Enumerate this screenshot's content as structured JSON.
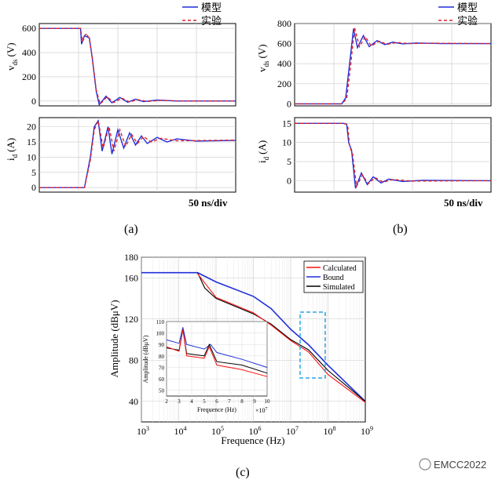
{
  "colors": {
    "model": "#1f2fd9",
    "exp": "#e0202a",
    "calc": "#ff1010",
    "bound": "#1f2fd9",
    "sim": "#000000",
    "box": "#29a8e0"
  },
  "watermark": "EMCC2022",
  "chart_data": [
    {
      "id": "a-vds",
      "type": "line",
      "panel_label": "(a)",
      "ylabel_main": "v",
      "ylabel_sub": "ds",
      "ylabel_unit": "(V)",
      "ylim": [
        -40,
        640
      ],
      "yticks": [
        0,
        200,
        400,
        600
      ],
      "grid": true,
      "legend": [
        "模型",
        "实验"
      ],
      "series": [
        {
          "name": "模型",
          "style": "solid",
          "points": [
            [
              0,
              600
            ],
            [
              0.21,
              600
            ],
            [
              0.215,
              470
            ],
            [
              0.23,
              540
            ],
            [
              0.255,
              520
            ],
            [
              0.27,
              350
            ],
            [
              0.29,
              80
            ],
            [
              0.305,
              -30
            ],
            [
              0.34,
              40
            ],
            [
              0.37,
              -15
            ],
            [
              0.41,
              30
            ],
            [
              0.45,
              -10
            ],
            [
              0.49,
              15
            ],
            [
              0.53,
              -5
            ],
            [
              0.6,
              8
            ],
            [
              0.7,
              0
            ],
            [
              1,
              0
            ]
          ]
        },
        {
          "name": "实验",
          "style": "dashed",
          "points": [
            [
              0,
              600
            ],
            [
              0.21,
              600
            ],
            [
              0.22,
              490
            ],
            [
              0.24,
              560
            ],
            [
              0.255,
              510
            ],
            [
              0.27,
              360
            ],
            [
              0.29,
              90
            ],
            [
              0.31,
              -25
            ],
            [
              0.345,
              35
            ],
            [
              0.38,
              -12
            ],
            [
              0.42,
              25
            ],
            [
              0.46,
              -8
            ],
            [
              0.5,
              12
            ],
            [
              0.55,
              -4
            ],
            [
              0.62,
              6
            ],
            [
              0.72,
              0
            ],
            [
              1,
              0
            ]
          ]
        }
      ]
    },
    {
      "id": "a-id",
      "type": "line",
      "ylabel_main": "i",
      "ylabel_sub": "d",
      "ylabel_unit": "(A)",
      "ylim": [
        -1.5,
        23
      ],
      "yticks": [
        0,
        5,
        10,
        15,
        20
      ],
      "grid": true,
      "time_scale": "50 ns/div",
      "series": [
        {
          "name": "模型",
          "style": "solid",
          "points": [
            [
              0,
              0
            ],
            [
              0.23,
              0
            ],
            [
              0.26,
              10
            ],
            [
              0.28,
              20
            ],
            [
              0.3,
              22
            ],
            [
              0.32,
              12
            ],
            [
              0.35,
              20
            ],
            [
              0.37,
              11
            ],
            [
              0.4,
              19
            ],
            [
              0.43,
              13
            ],
            [
              0.46,
              18
            ],
            [
              0.49,
              14
            ],
            [
              0.52,
              17
            ],
            [
              0.55,
              14.5
            ],
            [
              0.6,
              16.5
            ],
            [
              0.65,
              15
            ],
            [
              0.7,
              16
            ],
            [
              0.8,
              15.3
            ],
            [
              1,
              15.5
            ]
          ]
        },
        {
          "name": "实验",
          "style": "dashed",
          "points": [
            [
              0,
              0
            ],
            [
              0.23,
              0
            ],
            [
              0.26,
              9
            ],
            [
              0.28,
              19
            ],
            [
              0.3,
              22
            ],
            [
              0.325,
              13
            ],
            [
              0.355,
              20
            ],
            [
              0.38,
              12
            ],
            [
              0.41,
              19
            ],
            [
              0.44,
              13.5
            ],
            [
              0.47,
              17.5
            ],
            [
              0.5,
              14.5
            ],
            [
              0.53,
              16.8
            ],
            [
              0.57,
              15
            ],
            [
              0.62,
              16.2
            ],
            [
              0.7,
              15.4
            ],
            [
              1,
              15.6
            ]
          ]
        }
      ]
    },
    {
      "id": "b-vds",
      "type": "line",
      "panel_label": "(b)",
      "ylabel_main": "v",
      "ylabel_sub": "ds",
      "ylabel_unit": "(V)",
      "ylim": [
        -20,
        800
      ],
      "yticks": [
        0,
        200,
        400,
        600,
        800
      ],
      "grid": true,
      "legend": [
        "模型",
        "实验"
      ],
      "series": [
        {
          "name": "模型",
          "style": "solid",
          "points": [
            [
              0,
              0
            ],
            [
              0.24,
              0
            ],
            [
              0.26,
              60
            ],
            [
              0.28,
              400
            ],
            [
              0.3,
              750
            ],
            [
              0.32,
              560
            ],
            [
              0.35,
              680
            ],
            [
              0.38,
              570
            ],
            [
              0.42,
              630
            ],
            [
              0.46,
              590
            ],
            [
              0.5,
              615
            ],
            [
              0.55,
              598
            ],
            [
              0.62,
              606
            ],
            [
              0.75,
              600
            ],
            [
              1,
              600
            ]
          ]
        },
        {
          "name": "实验",
          "style": "dashed",
          "points": [
            [
              0,
              0
            ],
            [
              0.24,
              0
            ],
            [
              0.265,
              50
            ],
            [
              0.285,
              380
            ],
            [
              0.305,
              760
            ],
            [
              0.33,
              570
            ],
            [
              0.36,
              670
            ],
            [
              0.39,
              575
            ],
            [
              0.43,
              625
            ],
            [
              0.47,
              592
            ],
            [
              0.52,
              612
            ],
            [
              0.58,
              600
            ],
            [
              0.7,
              604
            ],
            [
              1,
              600
            ]
          ]
        }
      ]
    },
    {
      "id": "b-id",
      "type": "line",
      "ylabel_main": "i",
      "ylabel_sub": "d",
      "ylabel_unit": "(A)",
      "ylim": [
        -3,
        16.5
      ],
      "yticks": [
        0,
        5,
        10,
        15
      ],
      "grid": true,
      "time_scale": "50 ns/div",
      "series": [
        {
          "name": "模型",
          "style": "solid",
          "points": [
            [
              0,
              15
            ],
            [
              0.25,
              15
            ],
            [
              0.265,
              14.8
            ],
            [
              0.275,
              10
            ],
            [
              0.29,
              8
            ],
            [
              0.31,
              -2
            ],
            [
              0.34,
              2
            ],
            [
              0.37,
              -1
            ],
            [
              0.4,
              1
            ],
            [
              0.44,
              -0.6
            ],
            [
              0.48,
              0.4
            ],
            [
              0.55,
              -0.2
            ],
            [
              0.65,
              0.1
            ],
            [
              1,
              0
            ]
          ]
        },
        {
          "name": "实验",
          "style": "dashed",
          "points": [
            [
              0,
              15
            ],
            [
              0.25,
              15
            ],
            [
              0.27,
              14.6
            ],
            [
              0.28,
              9
            ],
            [
              0.295,
              7
            ],
            [
              0.315,
              -1.5
            ],
            [
              0.345,
              1.5
            ],
            [
              0.375,
              -0.8
            ],
            [
              0.41,
              0.8
            ],
            [
              0.45,
              -0.4
            ],
            [
              0.5,
              0.3
            ],
            [
              0.6,
              -0.1
            ],
            [
              1,
              0
            ]
          ]
        }
      ]
    },
    {
      "id": "c-spectrum",
      "type": "line",
      "panel_label": "(c)",
      "xlabel": "Frequence (Hz)",
      "ylabel": "Amplitude (dBμV)",
      "x_scale": "log",
      "xlim": [
        1000.0,
        1000000000.0
      ],
      "ylim": [
        20,
        180
      ],
      "xtick_labels": [
        "10",
        "10",
        "10",
        "10",
        "10",
        "10",
        "10"
      ],
      "xtick_exps": [
        "3",
        "4",
        "5",
        "6",
        "7",
        "8",
        "9"
      ],
      "yticks": [
        40,
        80,
        120,
        160,
        180
      ],
      "grid": true,
      "legend": [
        "Calculated",
        "Bound",
        "Simulated"
      ],
      "series": [
        {
          "name": "Bound",
          "color": "#1f2fd9",
          "points": [
            [
              1000.0,
              165
            ],
            [
              32000.0,
              165
            ],
            [
              100000.0,
              156
            ],
            [
              1000000.0,
              142
            ],
            [
              3000000.0,
              130
            ],
            [
              10000000.0,
              110
            ],
            [
              30000000.0,
              95
            ],
            [
              100000000.0,
              75
            ],
            [
              1000000000.0,
              40
            ]
          ]
        },
        {
          "name": "Simulated",
          "color": "#000000",
          "points": [
            [
              32000.0,
              165
            ],
            [
              50000.0,
              150
            ],
            [
              100000.0,
              140
            ],
            [
              1000000.0,
              125
            ],
            [
              3000000.0,
              115
            ],
            [
              10000000.0,
              100
            ],
            [
              30000000.0,
              90
            ],
            [
              100000000.0,
              70
            ],
            [
              1000000000.0,
              40
            ]
          ]
        },
        {
          "name": "Calculated",
          "color": "#ff1010",
          "points": [
            [
              32000.0,
              164
            ],
            [
              100000.0,
              141
            ],
            [
              1000000.0,
              126
            ],
            [
              3000000.0,
              114
            ],
            [
              10000000.0,
              99
            ],
            [
              30000000.0,
              88
            ],
            [
              100000000.0,
              66
            ],
            [
              1000000000.0,
              39
            ]
          ]
        }
      ],
      "inset": {
        "xlabel": "Frequence (Hz)",
        "ylabel": "Amplitude (dBμV)",
        "xlim": [
          2,
          10
        ],
        "x_exponent": "×10",
        "x_exponent_power": "7",
        "xticks": [
          2,
          3,
          4,
          5,
          6,
          7,
          8,
          9,
          10
        ],
        "ylim": [
          45,
          110
        ],
        "yticks": [
          50,
          60,
          70,
          80,
          90,
          100,
          110
        ],
        "series": [
          {
            "name": "Bound",
            "color": "#1f2fd9",
            "points": [
              [
                2,
                94
              ],
              [
                3,
                91
              ],
              [
                3.3,
                105
              ],
              [
                3.6,
                90
              ],
              [
                5,
                86
              ],
              [
                5.5,
                90
              ],
              [
                6,
                83
              ],
              [
                8,
                77
              ],
              [
                10,
                70
              ]
            ]
          },
          {
            "name": "Simulated",
            "color": "#000000",
            "points": [
              [
                2,
                87
              ],
              [
                3,
                85
              ],
              [
                3.3,
                103
              ],
              [
                3.6,
                82
              ],
              [
                5,
                80
              ],
              [
                5.4,
                90
              ],
              [
                6,
                75
              ],
              [
                8,
                72
              ],
              [
                10,
                65
              ]
            ]
          },
          {
            "name": "Calculated",
            "color": "#ff1010",
            "points": [
              [
                2,
                88
              ],
              [
                3,
                84
              ],
              [
                3.3,
                103
              ],
              [
                3.6,
                80
              ],
              [
                5,
                78
              ],
              [
                5.4,
                88
              ],
              [
                6,
                72
              ],
              [
                8,
                68
              ],
              [
                10,
                62
              ]
            ]
          }
        ]
      }
    }
  ]
}
